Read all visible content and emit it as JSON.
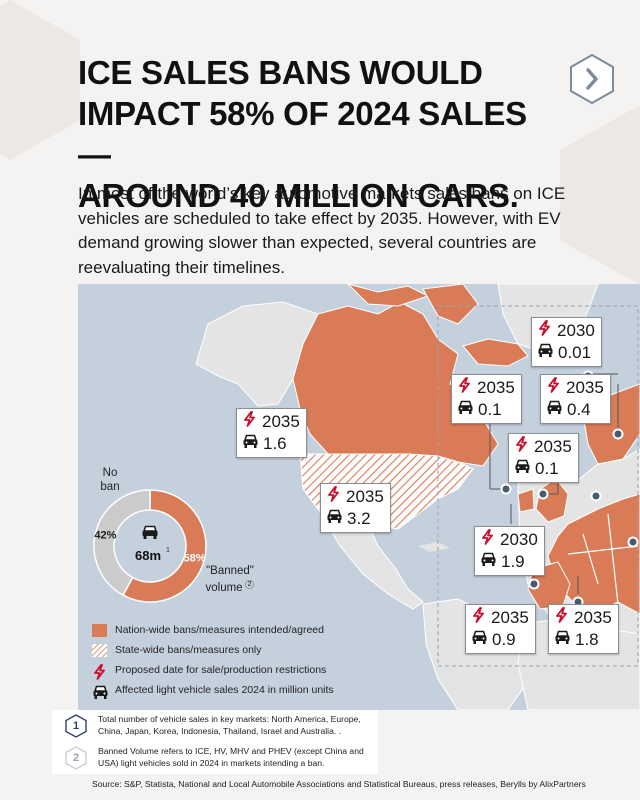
{
  "header": {
    "title_lines": [
      "ICE SALES BANS WOULD",
      "IMPACT 58% OF 2024 SALES—",
      "AROUND 40 MILLION CARS."
    ],
    "intro": "In most of the world’s key automotive markets sales bans on ICE vehicles are scheduled to take effect by 2035. However, with EV demand growing slower than expected, several countries are reevaluating their timelines."
  },
  "nav": {
    "next_icon": "chevron-right-icon"
  },
  "chart_data": {
    "type": "pie",
    "slices": [
      {
        "label": "\"Banned\" volume",
        "value": 58,
        "value_label": "58%",
        "note": "2",
        "color": "#d97b57"
      },
      {
        "label": "No ban",
        "value": 42,
        "value_label": "42%",
        "color": "#cbcbcb"
      }
    ],
    "center_label": "68m",
    "center_note": "1",
    "map_callouts": [
      {
        "year": "2035",
        "sales": "1.6"
      },
      {
        "year": "2035",
        "sales": "3.2"
      },
      {
        "year": "2030",
        "sales": "0.01"
      },
      {
        "year": "2035",
        "sales": "0.1"
      },
      {
        "year": "2035",
        "sales": "0.4"
      },
      {
        "year": "2035",
        "sales": "0.1"
      },
      {
        "year": "2030",
        "sales": "1.9"
      },
      {
        "year": "2035",
        "sales": "0.9"
      },
      {
        "year": "2035",
        "sales": "1.8"
      }
    ]
  },
  "legend": [
    {
      "kind": "solid",
      "label": "Nation-wide bans/measures intended/agreed"
    },
    {
      "kind": "hatch",
      "label": "State-wide bans/measures only"
    },
    {
      "kind": "bolt",
      "label": "Proposed date for sale/production restrictions"
    },
    {
      "kind": "car",
      "label": "Affected light vehicle sales 2024 in million units"
    }
  ],
  "notes": [
    {
      "num": "1",
      "text": "Total number of vehicle sales in key markets: North America, Europe, China, Japan, Korea, Indonesia, Thailand, Israel and Australia. ."
    },
    {
      "num": "2",
      "text": "Banned Volume refers to ICE, HV, MHV and PHEV (except China and USA) light vehicles sold in 2024 in markets intending a ban."
    }
  ],
  "source": "Source: S&P, Statista, National and Local Automobile Associations and Statistical Bureaus, press releases, Berylls by AlixPartners",
  "colors": {
    "ban": "#d97b57",
    "ocean": "#c5d0dd",
    "land": "#e6e6e6",
    "accent": "#c8102e"
  }
}
